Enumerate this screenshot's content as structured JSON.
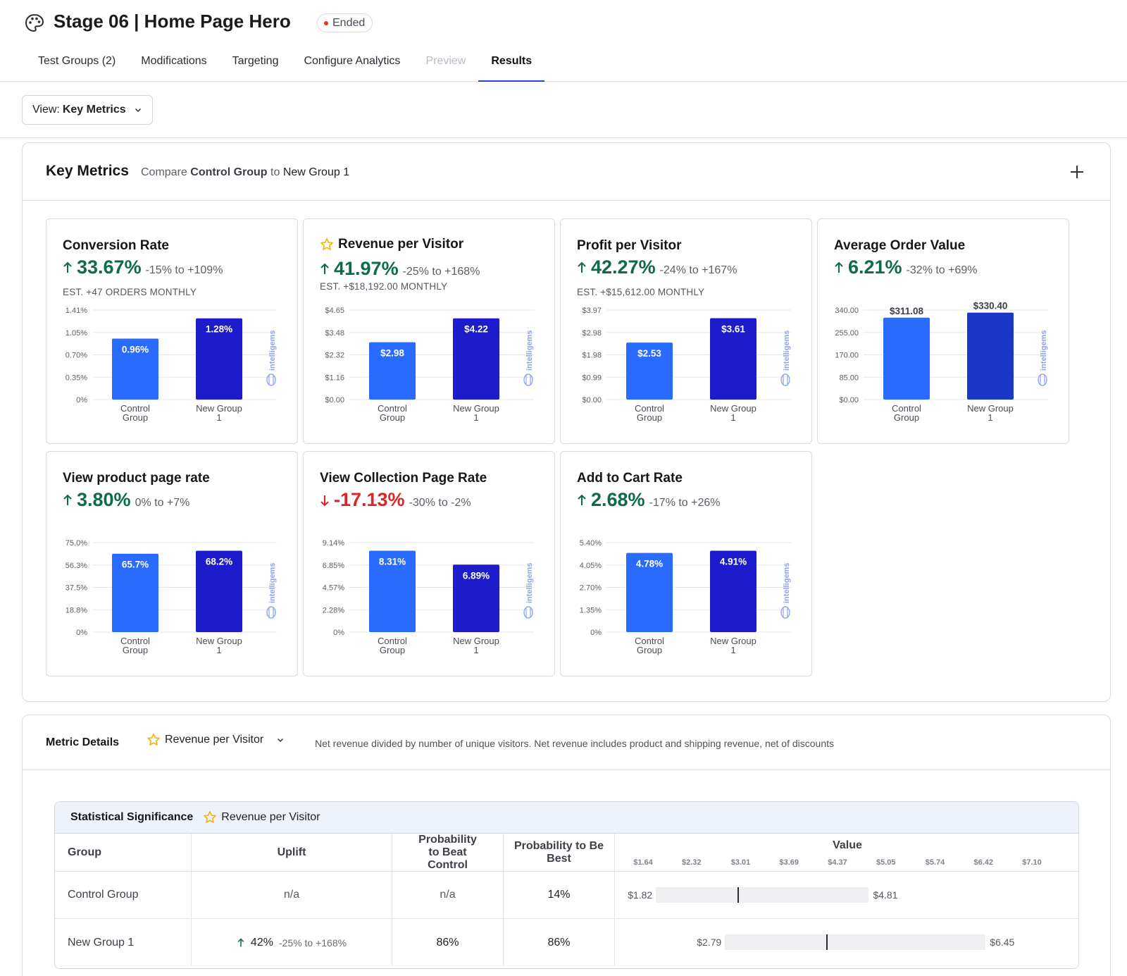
{
  "header": {
    "title": "Stage 06 | Home Page Hero",
    "status": "Ended",
    "tabs": [
      {
        "label": "Test Groups (2)",
        "state": "normal"
      },
      {
        "label": "Modifications",
        "state": "normal"
      },
      {
        "label": "Targeting",
        "state": "normal"
      },
      {
        "label": "Configure Analytics",
        "state": "normal"
      },
      {
        "label": "Preview",
        "state": "disabled"
      },
      {
        "label": "Results",
        "state": "active"
      }
    ]
  },
  "toolbar": {
    "view_prefix": "View:",
    "view_value": "Key Metrics"
  },
  "key_metrics": {
    "title": "Key Metrics",
    "compare_prefix": "Compare",
    "control": "Control Group",
    "compare_to": "to",
    "variant": "New Group 1",
    "watermark": "intelligems",
    "cards": [
      {
        "title": "Conversion Rate",
        "starred": false,
        "uplift": "33.67%",
        "direction": "up",
        "range": "-15% to +109%",
        "estimate": "EST. +47 ORDERS MONTHLY",
        "chart_data": {
          "type": "bar",
          "categories": [
            "Control Group",
            "New Group 1"
          ],
          "values": [
            0.96,
            1.28
          ],
          "labels": [
            "0.96%",
            "1.28%"
          ],
          "ylim": [
            0,
            1.41
          ],
          "yticks": [
            "0%",
            "0.35%",
            "0.70%",
            "1.05%",
            "1.41%"
          ],
          "label_position": "inside"
        }
      },
      {
        "title": "Revenue per Visitor",
        "starred": true,
        "uplift": "41.97%",
        "direction": "up",
        "range": "-25% to +168%",
        "estimate": "EST. +$18,192.00 MONTHLY",
        "chart_data": {
          "type": "bar",
          "categories": [
            "Control Group",
            "New Group 1"
          ],
          "values": [
            2.98,
            4.22
          ],
          "labels": [
            "$2.98",
            "$4.22"
          ],
          "ylim": [
            0,
            4.65
          ],
          "yticks": [
            "$0.00",
            "$1.16",
            "$2.32",
            "$3.48",
            "$4.65"
          ],
          "label_position": "inside"
        }
      },
      {
        "title": "Profit per Visitor",
        "starred": false,
        "uplift": "42.27%",
        "direction": "up",
        "range": "-24% to +167%",
        "estimate": "EST. +$15,612.00 MONTHLY",
        "chart_data": {
          "type": "bar",
          "categories": [
            "Control Group",
            "New Group 1"
          ],
          "values": [
            2.53,
            3.61
          ],
          "labels": [
            "$2.53",
            "$3.61"
          ],
          "ylim": [
            0,
            3.97
          ],
          "yticks": [
            "$0.00",
            "$0.99",
            "$1.98",
            "$2.98",
            "$3.97"
          ],
          "label_position": "inside"
        }
      },
      {
        "title": "Average Order Value",
        "starred": false,
        "uplift": "6.21%",
        "direction": "up",
        "range": "-32% to +69%",
        "estimate": "",
        "chart_data": {
          "type": "bar",
          "categories": [
            "Control Group",
            "New Group 1"
          ],
          "values": [
            311.08,
            330.4
          ],
          "labels": [
            "$311.08",
            "$330.40"
          ],
          "ylim": [
            0,
            340
          ],
          "yticks": [
            "$0.00",
            "85.00",
            "170.00",
            "255.00",
            "340.00"
          ],
          "label_position": "above"
        }
      },
      {
        "title": "View product page rate",
        "starred": false,
        "uplift": "3.80%",
        "direction": "up",
        "range": "0% to +7%",
        "estimate": "",
        "chart_data": {
          "type": "bar",
          "categories": [
            "Control Group",
            "New Group 1"
          ],
          "values": [
            65.7,
            68.2
          ],
          "labels": [
            "65.7%",
            "68.2%"
          ],
          "ylim": [
            0,
            75
          ],
          "yticks": [
            "0%",
            "18.8%",
            "37.5%",
            "56.3%",
            "75.0%"
          ],
          "label_position": "inside"
        }
      },
      {
        "title": "View Collection Page Rate",
        "starred": false,
        "uplift": "-17.13%",
        "direction": "down",
        "range": "-30% to -2%",
        "estimate": "",
        "chart_data": {
          "type": "bar",
          "categories": [
            "Control Group",
            "New Group 1"
          ],
          "values": [
            8.31,
            6.89
          ],
          "labels": [
            "8.31%",
            "6.89%"
          ],
          "ylim": [
            0,
            9.14
          ],
          "yticks": [
            "0%",
            "2.28%",
            "4.57%",
            "6.85%",
            "9.14%"
          ],
          "label_position": "inside"
        }
      },
      {
        "title": "Add to Cart Rate",
        "starred": false,
        "uplift": "2.68%",
        "direction": "up",
        "range": "-17% to +26%",
        "estimate": "",
        "chart_data": {
          "type": "bar",
          "categories": [
            "Control Group",
            "New Group 1"
          ],
          "values": [
            4.78,
            4.91
          ],
          "labels": [
            "4.78%",
            "4.91%"
          ],
          "ylim": [
            0,
            5.4
          ],
          "yticks": [
            "0%",
            "1.35%",
            "2.70%",
            "4.05%",
            "5.40%"
          ],
          "label_position": "inside"
        }
      }
    ]
  },
  "metric_details": {
    "title": "Metric Details",
    "metric": "Revenue per Visitor",
    "description": "Net revenue divided by number of unique visitors. Net revenue includes product and shipping revenue, net of discounts",
    "significance": {
      "title": "Statistical Significance",
      "metric": "Revenue per Visitor",
      "columns": [
        "Group",
        "Uplift",
        "Probability to Beat Control",
        "Probability to Be Best",
        "Value"
      ],
      "value_axis": [
        "$1.64",
        "$2.32",
        "$3.01",
        "$3.69",
        "$4.37",
        "$5.05",
        "$5.74",
        "$6.42",
        "$7.10"
      ],
      "rows": [
        {
          "group": "Control Group",
          "uplift": "n/a",
          "uplift_range": "",
          "beat_control": "n/a",
          "be_best": "14%",
          "low": "$1.82",
          "high": "$4.81",
          "low_v": 1.82,
          "high_v": 4.81,
          "mean_v": 2.98
        },
        {
          "group": "New Group 1",
          "uplift": "42%",
          "uplift_range": "-25% to +168%",
          "beat_control": "86%",
          "be_best": "86%",
          "low": "$2.79",
          "high": "$6.45",
          "low_v": 2.79,
          "high_v": 6.45,
          "mean_v": 4.22
        }
      ]
    }
  },
  "colors": {
    "control_bar": "#2a6bff",
    "variant_bar": "#1c1ccc",
    "aov_variant_bar": "#1a37c8",
    "positive": "#0d6b47",
    "negative": "#e02323",
    "accent": "#1f47d6"
  }
}
